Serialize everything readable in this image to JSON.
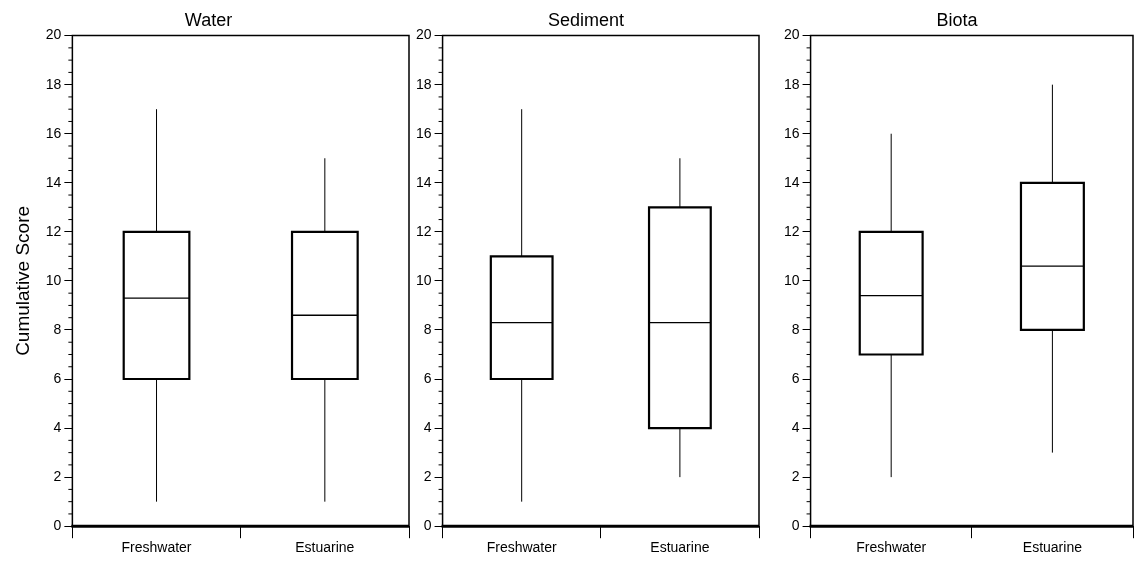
{
  "chart_data": [
    {
      "type": "box",
      "title": "Water",
      "ylabel": "Cumulative Score",
      "categories": [
        "Freshwater",
        "Estuarine"
      ],
      "ylim": [
        0,
        20
      ],
      "yticks": [
        0,
        2,
        4,
        6,
        8,
        10,
        12,
        14,
        16,
        18,
        20
      ],
      "boxes": [
        {
          "low": 1,
          "q1": 6,
          "median": 9.3,
          "q3": 12,
          "high": 17
        },
        {
          "low": 1,
          "q1": 6,
          "median": 8.6,
          "q3": 12,
          "high": 15
        }
      ]
    },
    {
      "type": "box",
      "title": "Sediment",
      "categories": [
        "Freshwater",
        "Estuarine"
      ],
      "ylim": [
        0,
        20
      ],
      "yticks": [
        0,
        2,
        4,
        6,
        8,
        10,
        12,
        14,
        16,
        18,
        20
      ],
      "boxes": [
        {
          "low": 1,
          "q1": 6,
          "median": 8.3,
          "q3": 11,
          "high": 17
        },
        {
          "low": 2,
          "q1": 4,
          "median": 8.3,
          "q3": 13,
          "high": 15
        }
      ]
    },
    {
      "type": "box",
      "title": "Biota",
      "categories": [
        "Freshwater",
        "Estuarine"
      ],
      "ylim": [
        0,
        20
      ],
      "yticks": [
        0,
        2,
        4,
        6,
        8,
        10,
        12,
        14,
        16,
        18,
        20
      ],
      "boxes": [
        {
          "low": 2,
          "q1": 7,
          "median": 9.4,
          "q3": 12,
          "high": 16
        },
        {
          "low": 3,
          "q1": 8,
          "median": 10.6,
          "q3": 14,
          "high": 18
        }
      ]
    }
  ]
}
